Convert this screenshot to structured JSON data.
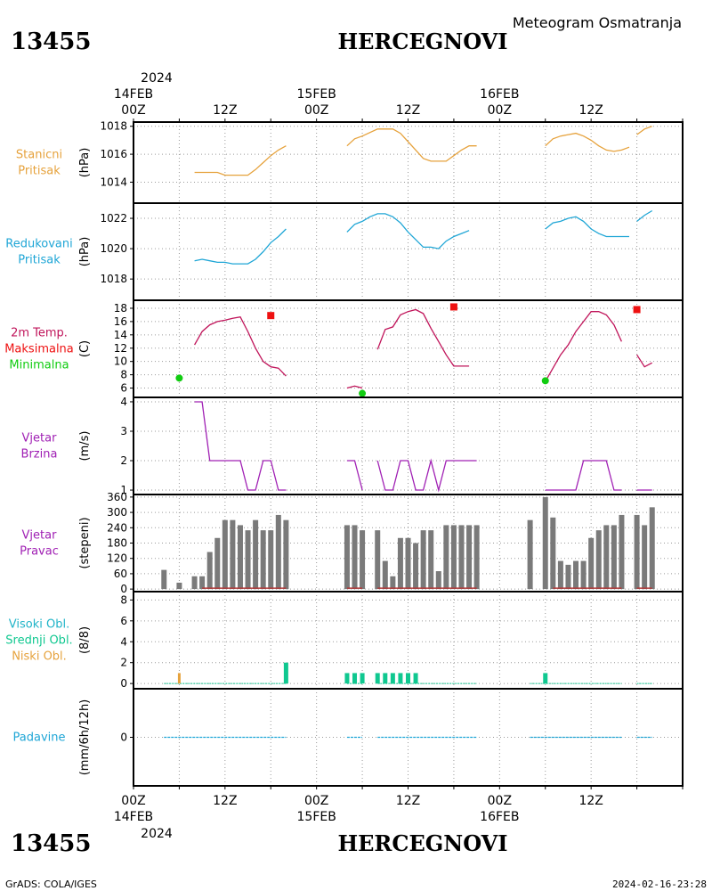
{
  "header": {
    "station_id": "13455",
    "station_name": "HERCEGNOVI",
    "subtitle": "Meteogram Osmatranja"
  },
  "footer": {
    "credit": "GrADS: COLA/IGES",
    "timestamp": "2024-02-16-23:28"
  },
  "time_axis": {
    "year": "2024",
    "hour_range": [
      0,
      72
    ],
    "top_ticks": [
      {
        "hour": 0,
        "date": "14FEB",
        "time": "00Z"
      },
      {
        "hour": 12,
        "date": "",
        "time": "12Z"
      },
      {
        "hour": 24,
        "date": "15FEB",
        "time": "00Z"
      },
      {
        "hour": 36,
        "date": "",
        "time": "12Z"
      },
      {
        "hour": 48,
        "date": "16FEB",
        "time": "00Z"
      },
      {
        "hour": 60,
        "date": "",
        "time": "12Z"
      }
    ],
    "bottom_ticks": [
      {
        "hour": 0,
        "time": "00Z",
        "date": "14FEB"
      },
      {
        "hour": 12,
        "time": "12Z",
        "date": ""
      },
      {
        "hour": 24,
        "time": "00Z",
        "date": "15FEB"
      },
      {
        "hour": 36,
        "time": "12Z",
        "date": ""
      },
      {
        "hour": 48,
        "time": "00Z",
        "date": "16FEB"
      },
      {
        "hour": 60,
        "time": "12Z",
        "date": ""
      }
    ]
  },
  "colors": {
    "station_pressure": "#e6a23c",
    "reduced_pressure": "#1fa6d6",
    "temperature": "#c0145a",
    "tmax": "#ee1111",
    "tmin": "#11cc11",
    "wind": "#a020b4",
    "wind_dir_bar": "#7a7a7a",
    "wind_dir_base": "#b03a3a",
    "cloud_high": "#20b4c8",
    "cloud_mid": "#10c890",
    "cloud_low": "#e6a23c",
    "precip": "#1fa6d6"
  },
  "chart_data": [
    {
      "type": "line",
      "labels": [
        "Stanicni",
        "Pritisak"
      ],
      "ylabel": "(hPa)",
      "ylim": [
        1012.5,
        1018.3
      ],
      "yticks": [
        1014,
        1016,
        1018
      ],
      "segments": [
        [
          [
            8,
            1014.7
          ],
          [
            9,
            1014.7
          ],
          [
            10,
            1014.7
          ],
          [
            11,
            1014.7
          ],
          [
            12,
            1014.5
          ],
          [
            13,
            1014.5
          ],
          [
            14,
            1014.5
          ],
          [
            15,
            1014.5
          ],
          [
            16,
            1014.9
          ],
          [
            17,
            1015.4
          ],
          [
            18,
            1015.9
          ],
          [
            19,
            1016.3
          ],
          [
            20,
            1016.6
          ]
        ],
        [
          [
            28,
            1016.6
          ],
          [
            29,
            1017.1
          ],
          [
            30,
            1017.3
          ],
          [
            32,
            1017.8
          ],
          [
            33,
            1017.8
          ],
          [
            34,
            1017.8
          ],
          [
            35,
            1017.5
          ],
          [
            36,
            1016.9
          ],
          [
            37,
            1016.3
          ],
          [
            38,
            1015.7
          ],
          [
            39,
            1015.5
          ],
          [
            40,
            1015.5
          ],
          [
            41,
            1015.5
          ],
          [
            42,
            1015.9
          ],
          [
            43,
            1016.3
          ],
          [
            44,
            1016.6
          ],
          [
            45,
            1016.6
          ]
        ],
        [
          [
            54,
            1016.6
          ],
          [
            55,
            1017.1
          ],
          [
            56,
            1017.3
          ],
          [
            57,
            1017.4
          ],
          [
            58,
            1017.5
          ],
          [
            59,
            1017.3
          ],
          [
            60,
            1017.0
          ],
          [
            61,
            1016.6
          ],
          [
            62,
            1016.3
          ],
          [
            63,
            1016.2
          ],
          [
            64,
            1016.3
          ],
          [
            65,
            1016.5
          ]
        ],
        [
          [
            66,
            1017.4
          ],
          [
            67,
            1017.8
          ],
          [
            68,
            1018.0
          ]
        ]
      ]
    },
    {
      "type": "line",
      "labels": [
        "Redukovani",
        "Pritisak"
      ],
      "ylabel": "(hPa)",
      "ylim": [
        1016.6,
        1023.0
      ],
      "yticks": [
        1018,
        1020,
        1022
      ],
      "segments": [
        [
          [
            8,
            1019.2
          ],
          [
            9,
            1019.3
          ],
          [
            10,
            1019.2
          ],
          [
            11,
            1019.1
          ],
          [
            12,
            1019.1
          ],
          [
            13,
            1019.0
          ],
          [
            14,
            1019.0
          ],
          [
            15,
            1019.0
          ],
          [
            16,
            1019.3
          ],
          [
            17,
            1019.8
          ],
          [
            18,
            1020.4
          ],
          [
            19,
            1020.8
          ],
          [
            20,
            1021.3
          ]
        ],
        [
          [
            28,
            1021.1
          ],
          [
            29,
            1021.6
          ],
          [
            30,
            1021.8
          ],
          [
            31,
            1022.1
          ],
          [
            32,
            1022.3
          ],
          [
            33,
            1022.3
          ],
          [
            34,
            1022.1
          ],
          [
            35,
            1021.7
          ],
          [
            36,
            1021.1
          ],
          [
            37,
            1020.6
          ],
          [
            38,
            1020.1
          ],
          [
            39,
            1020.1
          ],
          [
            40,
            1020.0
          ],
          [
            41,
            1020.5
          ],
          [
            42,
            1020.8
          ],
          [
            43,
            1021.0
          ],
          [
            44,
            1021.2
          ]
        ],
        [
          [
            54,
            1021.3
          ],
          [
            55,
            1021.7
          ],
          [
            56,
            1021.8
          ],
          [
            57,
            1022.0
          ],
          [
            58,
            1022.1
          ],
          [
            59,
            1021.8
          ],
          [
            60,
            1021.3
          ],
          [
            61,
            1021.0
          ],
          [
            62,
            1020.8
          ],
          [
            63,
            1020.8
          ],
          [
            64,
            1020.8
          ],
          [
            65,
            1020.8
          ]
        ],
        [
          [
            66,
            1021.8
          ],
          [
            67,
            1022.2
          ],
          [
            68,
            1022.5
          ]
        ]
      ]
    },
    {
      "type": "line",
      "labels": [
        "2m Temp.",
        "Maksimalna",
        "Minimalna"
      ],
      "ylabel": "(C)",
      "ylim": [
        4.6,
        19.2
      ],
      "yticks": [
        6,
        8,
        10,
        12,
        14,
        16,
        18
      ],
      "segments": [
        [
          [
            8,
            12.5
          ],
          [
            9,
            14.5
          ],
          [
            10,
            15.5
          ],
          [
            11,
            16.0
          ],
          [
            12,
            16.2
          ],
          [
            13,
            16.5
          ],
          [
            14,
            16.7
          ],
          [
            15,
            14.5
          ],
          [
            16,
            12.0
          ],
          [
            17,
            10.0
          ],
          [
            18,
            9.2
          ],
          [
            19,
            9.0
          ],
          [
            20,
            7.8
          ]
        ],
        [
          [
            28,
            6.0
          ],
          [
            29,
            6.3
          ],
          [
            30,
            6.0
          ]
        ],
        [
          [
            32,
            11.8
          ],
          [
            33,
            14.8
          ],
          [
            34,
            15.2
          ],
          [
            35,
            17.0
          ],
          [
            36,
            17.5
          ],
          [
            37,
            17.8
          ],
          [
            38,
            17.2
          ],
          [
            39,
            15.0
          ],
          [
            40,
            13.0
          ],
          [
            41,
            11.0
          ],
          [
            42,
            9.3
          ],
          [
            43,
            9.3
          ],
          [
            44,
            9.3
          ]
        ],
        [
          [
            54,
            7.0
          ],
          [
            55,
            9.0
          ],
          [
            56,
            11.0
          ],
          [
            57,
            12.5
          ],
          [
            58,
            14.5
          ],
          [
            59,
            16.0
          ],
          [
            60,
            17.5
          ],
          [
            61,
            17.5
          ],
          [
            62,
            17.0
          ],
          [
            63,
            15.5
          ],
          [
            64,
            13.0
          ]
        ],
        [
          [
            66,
            11.0
          ],
          [
            67,
            9.2
          ],
          [
            68,
            9.8
          ]
        ]
      ],
      "tmax": [
        [
          18,
          16.9
        ],
        [
          42,
          18.2
        ],
        [
          66,
          17.8
        ]
      ],
      "tmin": [
        [
          6,
          7.5
        ],
        [
          30,
          5.2
        ],
        [
          54,
          7.1
        ]
      ]
    },
    {
      "type": "line",
      "labels": [
        "Vjetar",
        "Brzina"
      ],
      "ylabel": "(m/s)",
      "ylim": [
        0.85,
        4.15
      ],
      "yticks": [
        1,
        2,
        3,
        4
      ],
      "segments": [
        [
          [
            8,
            4
          ],
          [
            9,
            4
          ],
          [
            10,
            2
          ],
          [
            11,
            2
          ],
          [
            12,
            2
          ],
          [
            13,
            2
          ],
          [
            14,
            2
          ],
          [
            15,
            1
          ],
          [
            16,
            1
          ],
          [
            17,
            2
          ],
          [
            18,
            2
          ],
          [
            19,
            1
          ],
          [
            20,
            1
          ]
        ],
        [
          [
            28,
            2
          ],
          [
            29,
            2
          ],
          [
            30,
            1
          ]
        ],
        [
          [
            32,
            2
          ],
          [
            33,
            1
          ],
          [
            34,
            1
          ],
          [
            35,
            2
          ],
          [
            36,
            2
          ],
          [
            37,
            1
          ],
          [
            38,
            1
          ],
          [
            39,
            2
          ],
          [
            40,
            1
          ],
          [
            41,
            2
          ],
          [
            42,
            2
          ],
          [
            43,
            2
          ],
          [
            44,
            2
          ],
          [
            45,
            2
          ]
        ],
        [
          [
            54,
            1
          ],
          [
            55,
            1
          ],
          [
            56,
            1
          ],
          [
            57,
            1
          ],
          [
            58,
            1
          ],
          [
            59,
            2
          ],
          [
            60,
            2
          ],
          [
            61,
            2
          ],
          [
            62,
            2
          ],
          [
            63,
            1
          ],
          [
            64,
            1
          ]
        ],
        [
          [
            66,
            1
          ],
          [
            67,
            1
          ],
          [
            68,
            1
          ]
        ]
      ]
    },
    {
      "type": "bar",
      "labels": [
        "Vjetar",
        "Pravac"
      ],
      "ylabel": "(stepeni)",
      "ylim": [
        -10,
        370
      ],
      "yticks": [
        0,
        60,
        120,
        180,
        240,
        300,
        360
      ],
      "x": [
        4,
        6,
        8,
        9,
        10,
        11,
        12,
        13,
        14,
        15,
        16,
        17,
        18,
        19,
        20,
        28,
        29,
        30,
        32,
        33,
        34,
        35,
        36,
        37,
        38,
        39,
        40,
        41,
        42,
        43,
        44,
        45,
        52,
        54,
        55,
        56,
        57,
        58,
        59,
        60,
        61,
        62,
        63,
        64,
        66,
        67,
        68
      ],
      "values": [
        75,
        25,
        50,
        50,
        145,
        200,
        270,
        270,
        250,
        230,
        270,
        230,
        230,
        290,
        270,
        250,
        250,
        230,
        230,
        110,
        50,
        200,
        200,
        180,
        230,
        230,
        70,
        250,
        250,
        250,
        250,
        250,
        270,
        360,
        280,
        110,
        95,
        110,
        110,
        200,
        230,
        250,
        250,
        290,
        290,
        250,
        320
      ],
      "base_segments": [
        [
          9,
          20
        ],
        [
          28,
          30
        ],
        [
          32,
          45
        ],
        [
          55,
          64
        ],
        [
          66,
          68
        ]
      ]
    },
    {
      "type": "bar",
      "labels": [
        "Visoki Obl.",
        "Srednji Obl.",
        "Niski Obl."
      ],
      "ylabel": "(8/8)",
      "ylim": [
        -0.5,
        8.8
      ],
      "yticks": [
        0,
        2,
        4,
        6,
        8
      ],
      "low": {
        "x": [
          6
        ],
        "values": [
          1
        ]
      },
      "mid": {
        "x": [
          20,
          28,
          29,
          30,
          32,
          33,
          34,
          35,
          36,
          37,
          54
        ],
        "values": [
          2,
          1,
          1,
          1,
          1,
          1,
          1,
          1,
          1,
          1,
          1
        ]
      },
      "baseline_segments": [
        [
          4,
          20
        ],
        [
          28,
          30
        ],
        [
          32,
          45
        ],
        [
          52,
          64
        ],
        [
          66,
          68
        ]
      ]
    },
    {
      "type": "bar",
      "labels": [
        "Padavine"
      ],
      "ylabel": "(mm/6h/12h)",
      "ylim": [
        -5,
        5
      ],
      "yticks": [
        0
      ],
      "baseline_segments": [
        [
          4,
          20
        ],
        [
          28,
          30
        ],
        [
          32,
          45
        ],
        [
          52,
          64
        ],
        [
          66,
          68
        ]
      ]
    }
  ]
}
